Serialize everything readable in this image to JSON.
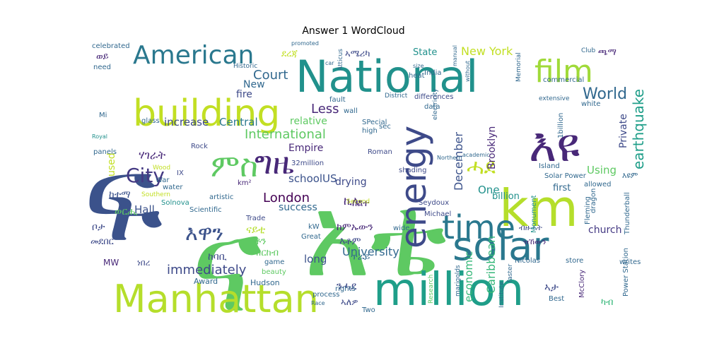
{
  "chart_data": {
    "type": "wordcloud",
    "title": "Answer 1 WordCloud",
    "words": [
      {
        "text": "ፍ",
        "weight": 100,
        "color": "#3b528b"
      },
      {
        "text": "ና",
        "weight": 95,
        "color": "#5ec962"
      },
      {
        "text": "አቴ",
        "weight": 90,
        "color": "#5ec962"
      },
      {
        "text": "National",
        "weight": 70,
        "color": "#21918c"
      },
      {
        "text": "million",
        "weight": 68,
        "color": "#1f9e89"
      },
      {
        "text": "Manhattan",
        "weight": 60,
        "color": "#b5de2b"
      },
      {
        "text": "building",
        "weight": 58,
        "color": "#c2df23"
      },
      {
        "text": "km",
        "weight": 56,
        "color": "#b5de2b"
      },
      {
        "text": "እዩ",
        "weight": 54,
        "color": "#482878"
      },
      {
        "text": "energy",
        "weight": 48,
        "color": "#3e4a89"
      },
      {
        "text": "solar",
        "weight": 46,
        "color": "#2a788e"
      },
      {
        "text": "time",
        "weight": 44,
        "color": "#2a788e"
      },
      {
        "text": "film",
        "weight": 42,
        "color": "#a0da39"
      },
      {
        "text": "American",
        "weight": 40,
        "color": "#2a788e"
      },
      {
        "text": "ግዜ",
        "weight": 40,
        "color": "#482878"
      },
      {
        "text": "ምስ",
        "weight": 38,
        "color": "#5ec962"
      },
      {
        "text": "City",
        "weight": 34,
        "color": "#443983"
      },
      {
        "text": "እዋን",
        "weight": 30,
        "color": "#3b528b"
      },
      {
        "text": "ሓደ",
        "weight": 28,
        "color": "#c2df23"
      },
      {
        "text": "earthquake",
        "weight": 24,
        "color": "#1f9e89"
      },
      {
        "text": "World",
        "weight": 24,
        "color": "#31688e"
      },
      {
        "text": "Court",
        "weight": 22,
        "color": "#31688e"
      },
      {
        "text": "International",
        "weight": 22,
        "color": "#5ec962"
      },
      {
        "text": "London",
        "weight": 22,
        "color": "#440154"
      },
      {
        "text": "Less",
        "weight": 22,
        "color": "#482878"
      },
      {
        "text": "immediately",
        "weight": 22,
        "color": "#3e4a89"
      },
      {
        "text": "University",
        "weight": 20,
        "color": "#31688e"
      },
      {
        "text": "December",
        "weight": 20,
        "color": "#3b528b"
      },
      {
        "text": "Caribbean",
        "weight": 20,
        "color": "#35b779"
      },
      {
        "text": "economic",
        "weight": 18,
        "color": "#35b779"
      },
      {
        "text": "New York",
        "weight": 18,
        "color": "#c2df23"
      },
      {
        "text": "Brooklyn",
        "weight": 16,
        "color": "#482878"
      },
      {
        "text": "Private",
        "weight": 16,
        "color": "#3e4a89"
      },
      {
        "text": "church",
        "weight": 18,
        "color": "#443983"
      },
      {
        "text": "Using",
        "weight": 18,
        "color": "#5ec962"
      },
      {
        "text": "One",
        "weight": 18,
        "color": "#21918c"
      },
      {
        "text": "billion",
        "weight": 16,
        "color": "#21918c"
      },
      {
        "text": "first",
        "weight": 14,
        "color": "#31688e"
      },
      {
        "text": "Central",
        "weight": 18,
        "color": "#2a788e"
      },
      {
        "text": "increase",
        "weight": 18,
        "color": "#3e4a89"
      },
      {
        "text": "fire",
        "weight": 16,
        "color": "#3e4a89"
      },
      {
        "text": "New",
        "weight": 16,
        "color": "#31688e"
      },
      {
        "text": "State",
        "weight": 14,
        "color": "#21918c"
      },
      {
        "text": "US",
        "weight": 18,
        "color": "#3b528b"
      },
      {
        "text": "school",
        "weight": 18,
        "color": "#3b528b"
      },
      {
        "text": "drying",
        "weight": 18,
        "color": "#3e4a89"
      },
      {
        "text": "relative",
        "weight": 16,
        "color": "#5ec962"
      },
      {
        "text": "Empire",
        "weight": 16,
        "color": "#482878"
      },
      {
        "text": "Hall",
        "weight": 18,
        "color": "#3b528b"
      },
      {
        "text": "success",
        "weight": 16,
        "color": "#31688e"
      },
      {
        "text": "long",
        "weight": 16,
        "color": "#3b528b"
      },
      {
        "text": "used",
        "weight": 16,
        "color": "#c2df23"
      },
      {
        "text": "MW",
        "weight": 14,
        "color": "#482878"
      },
      {
        "text": "ሃገራት",
        "weight": 18,
        "color": "#482878"
      },
      {
        "text": "ከተማ",
        "weight": 16,
        "color": "#3b528b"
      },
      {
        "text": "ወርሒ",
        "weight": 16,
        "color": "#5ec962"
      },
      {
        "text": "ቦታ",
        "weight": 16,
        "color": "#3e4a89"
      },
      {
        "text": "መደበር",
        "weight": 14,
        "color": "#3e4a89"
      },
      {
        "text": "ኣሜሪካ",
        "weight": 14,
        "color": "#3e4a89"
      },
      {
        "text": "ደረጃ",
        "weight": 14,
        "color": "#c2df23"
      },
      {
        "text": "ጫማ",
        "weight": 14,
        "color": "#482878"
      },
      {
        "text": "ኪሎ",
        "weight": 18,
        "color": "#482878"
      },
      {
        "text": "ቶን",
        "weight": 16,
        "color": "#5ec962"
      },
      {
        "text": "ናይቲ",
        "weight": 16,
        "color": "#b5de2b"
      },
      {
        "text": "ዝርከብ",
        "weight": 14,
        "color": "#5ec962"
      },
      {
        "text": "ከባቢ",
        "weight": 16,
        "color": "#3e4a89"
      },
      {
        "text": "ከምኡውን",
        "weight": 16,
        "color": "#482878"
      },
      {
        "text": "እቶም",
        "weight": 16,
        "color": "#3e4a89"
      },
      {
        "text": "ጥራይ",
        "weight": 14,
        "color": "#31688e"
      },
      {
        "text": "ከልተ",
        "weight": 14,
        "color": "#482878"
      },
      {
        "text": "ንሓደ",
        "weight": 16,
        "color": "#3e4a89"
      },
      {
        "text": "ኣለዎ",
        "weight": 14,
        "color": "#3e4a89"
      },
      {
        "text": "ኣታ",
        "weight": 16,
        "color": "#3e4a89"
      },
      {
        "text": "ካብ",
        "weight": 14,
        "color": "#35b779"
      },
      {
        "text": "ነበረ",
        "weight": 12,
        "color": "#3e4a89"
      },
      {
        "text": "ብዙሓት",
        "weight": 12,
        "color": "#3e4a89"
      },
      {
        "text": "ዝኸውን",
        "weight": 12,
        "color": "#482878"
      },
      {
        "text": "ወይ",
        "weight": 14,
        "color": "#482878"
      },
      {
        "text": "እዩም",
        "weight": 12,
        "color": "#31688e"
      },
      {
        "text": "Award",
        "weight": 12,
        "color": "#31688e"
      },
      {
        "text": "Hudson",
        "weight": 12,
        "color": "#31688e"
      },
      {
        "text": "Power Station",
        "weight": 11,
        "color": "#31688e"
      },
      {
        "text": "Solar Power",
        "weight": 11,
        "color": "#31688e"
      },
      {
        "text": "Great",
        "weight": 10,
        "color": "#31688e"
      },
      {
        "text": "Trade",
        "weight": 10,
        "color": "#3e4a89"
      },
      {
        "text": "Rock",
        "weight": 10,
        "color": "#3e4a89"
      },
      {
        "text": "Scientific",
        "weight": 10,
        "color": "#31688e"
      },
      {
        "text": "Solnova",
        "weight": 10,
        "color": "#21918c"
      },
      {
        "text": "artistic",
        "weight": 10,
        "color": "#31688e"
      },
      {
        "text": "water",
        "weight": 10,
        "color": "#31688e"
      },
      {
        "text": "War",
        "weight": 10,
        "color": "#31688e"
      },
      {
        "text": "Southern",
        "weight": 10,
        "color": "#c2df23"
      },
      {
        "text": "Wood",
        "weight": 10,
        "color": "#c2df23"
      },
      {
        "text": "panels",
        "weight": 10,
        "color": "#31688e"
      },
      {
        "text": "glass",
        "weight": 10,
        "color": "#31688e"
      },
      {
        "text": "Royal",
        "weight": 8,
        "color": "#21918c"
      },
      {
        "text": "Mi",
        "weight": 10,
        "color": "#31688e"
      },
      {
        "text": "need",
        "weight": 10,
        "color": "#31688e"
      },
      {
        "text": "celebrated",
        "weight": 10,
        "color": "#31688e"
      },
      {
        "text": "IX",
        "weight": 10,
        "color": "#3e4a89"
      },
      {
        "text": "32million",
        "weight": 10,
        "color": "#3e4a89"
      },
      {
        "text": "km²",
        "weight": 10,
        "color": "#482878"
      },
      {
        "text": "wide",
        "weight": 10,
        "color": "#31688e"
      },
      {
        "text": "kW",
        "weight": 10,
        "color": "#31688e"
      },
      {
        "text": "game",
        "weight": 10,
        "color": "#31688e"
      },
      {
        "text": "beauty",
        "weight": 10,
        "color": "#5ec962"
      },
      {
        "text": "Race",
        "weight": 8,
        "color": "#31688e"
      },
      {
        "text": "rights",
        "weight": 10,
        "color": "#31688e"
      },
      {
        "text": "process",
        "weight": 10,
        "color": "#31688e"
      },
      {
        "text": "Two",
        "weight": 10,
        "color": "#31688e"
      },
      {
        "text": "Second",
        "weight": 10,
        "color": "#c2df23"
      },
      {
        "text": "Roman",
        "weight": 10,
        "color": "#3e4a89"
      },
      {
        "text": "Seydoux",
        "weight": 10,
        "color": "#3e4a89"
      },
      {
        "text": "Michael",
        "weight": 10,
        "color": "#3e4a89"
      },
      {
        "text": "shading",
        "weight": 10,
        "color": "#3e4a89"
      },
      {
        "text": "Research",
        "weight": 10,
        "color": "#5ec962"
      },
      {
        "text": "marigolds",
        "weight": 10,
        "color": "#31688e"
      },
      {
        "text": "Institute",
        "weight": 10,
        "color": "#31688e"
      },
      {
        "text": "faster",
        "weight": 10,
        "color": "#31688e"
      },
      {
        "text": "Nicolas",
        "weight": 10,
        "color": "#31688e"
      },
      {
        "text": "McClory",
        "weight": 10,
        "color": "#482878"
      },
      {
        "text": "Best",
        "weight": 10,
        "color": "#31688e"
      },
      {
        "text": "writes",
        "weight": 10,
        "color": "#31688e"
      },
      {
        "text": "store",
        "weight": 10,
        "color": "#31688e"
      },
      {
        "text": "Monument",
        "weight": 10,
        "color": "#21918c"
      },
      {
        "text": "dragon",
        "weight": 10,
        "color": "#31688e"
      },
      {
        "text": "Fleming",
        "weight": 10,
        "color": "#31688e"
      },
      {
        "text": "Thunderball",
        "weight": 10,
        "color": "#31688e"
      },
      {
        "text": "allowed",
        "weight": 10,
        "color": "#31688e"
      },
      {
        "text": "Island",
        "weight": 10,
        "color": "#31688e"
      },
      {
        "text": "Northern",
        "weight": 8,
        "color": "#31688e"
      },
      {
        "text": "academic",
        "weight": 8,
        "color": "#31688e"
      },
      {
        "text": "1billion",
        "weight": 10,
        "color": "#31688e"
      },
      {
        "text": "white",
        "weight": 10,
        "color": "#31688e"
      },
      {
        "text": "commercial",
        "weight": 10,
        "color": "#31688e"
      },
      {
        "text": "extensive",
        "weight": 10,
        "color": "#31688e"
      },
      {
        "text": "differences",
        "weight": 10,
        "color": "#3e4a89"
      },
      {
        "text": "data",
        "weight": 10,
        "color": "#31688e"
      },
      {
        "text": "electricity",
        "weight": 10,
        "color": "#31688e"
      },
      {
        "text": "SPecial",
        "weight": 10,
        "color": "#31688e"
      },
      {
        "text": "high",
        "weight": 10,
        "color": "#31688e"
      },
      {
        "text": "sec",
        "weight": 10,
        "color": "#31688e"
      },
      {
        "text": "wall",
        "weight": 10,
        "color": "#31688e"
      },
      {
        "text": "fault",
        "weight": 10,
        "color": "#31688e"
      },
      {
        "text": "heat",
        "weight": 10,
        "color": "#31688e"
      },
      {
        "text": "India",
        "weight": 10,
        "color": "#31688e"
      },
      {
        "text": "District",
        "weight": 9,
        "color": "#31688e"
      },
      {
        "text": "Atticus",
        "weight": 9,
        "color": "#31688e"
      },
      {
        "text": "Historic",
        "weight": 9,
        "color": "#31688e"
      },
      {
        "text": "promoted",
        "weight": 8,
        "color": "#31688e"
      },
      {
        "text": "manual",
        "weight": 8,
        "color": "#31688e"
      },
      {
        "text": "size",
        "weight": 8,
        "color": "#31688e"
      },
      {
        "text": "without",
        "weight": 8,
        "color": "#31688e"
      },
      {
        "text": "Memorial",
        "weight": 9,
        "color": "#31688e"
      },
      {
        "text": "Club",
        "weight": 9,
        "color": "#31688e"
      },
      {
        "text": "car",
        "weight": 8,
        "color": "#31688e"
      }
    ]
  }
}
